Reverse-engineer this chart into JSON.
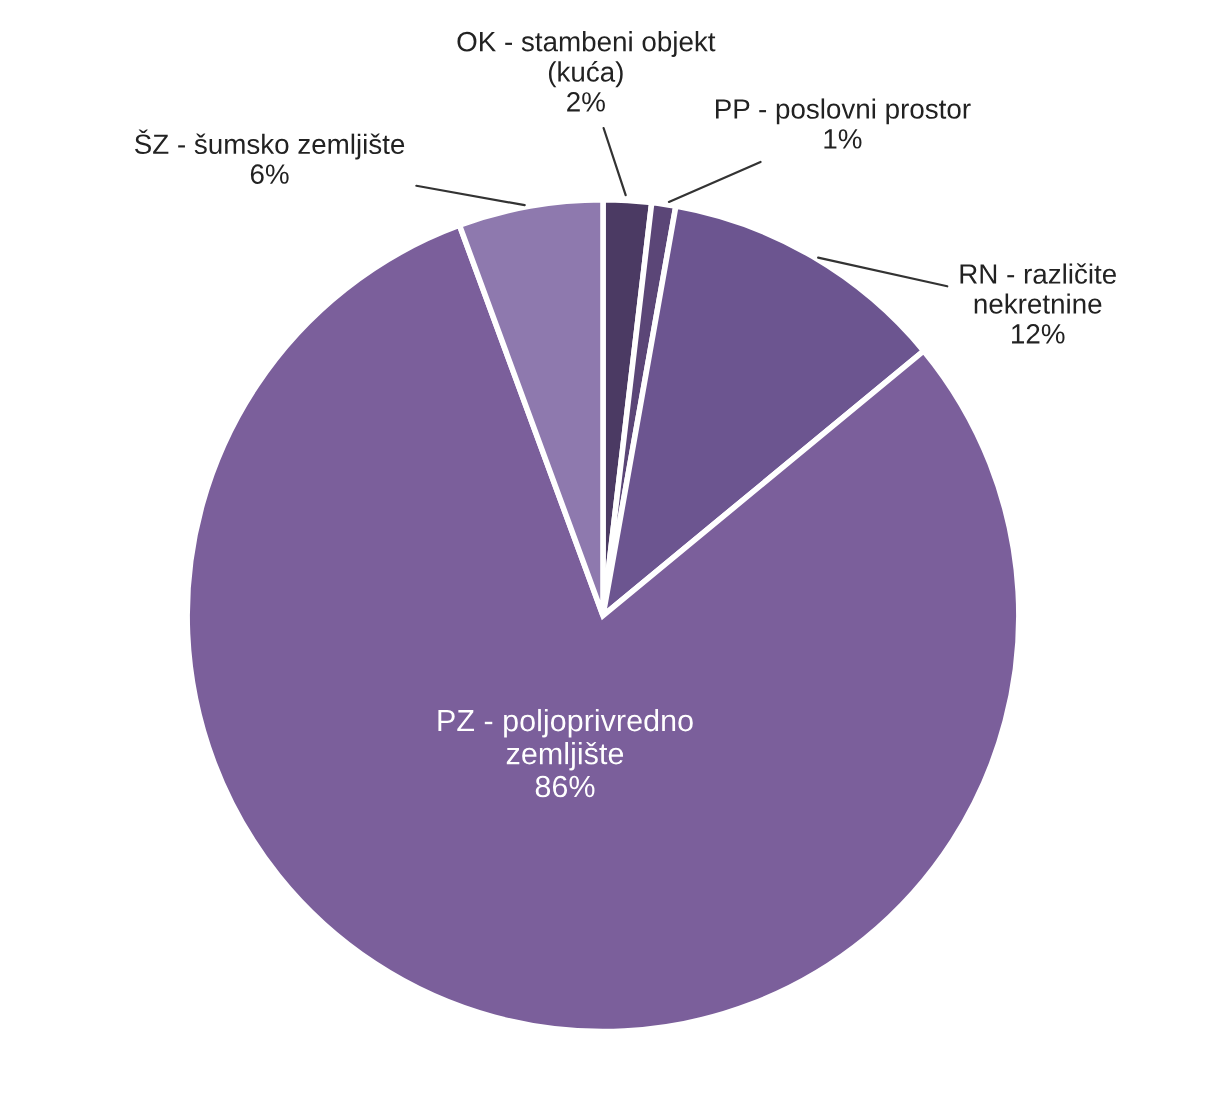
{
  "chart_data": {
    "type": "pie",
    "categories": [
      "OK - stambeni objekt\n(kuća)",
      "PP - poslovni prostor",
      "RN - različite\nnekretnine",
      "PZ - poljoprivredno\nzemljište",
      "ŠZ - šumsko zemljište"
    ],
    "values": [
      2,
      1,
      12,
      86,
      6
    ],
    "value_labels": [
      "2%",
      "1%",
      "12%",
      "86%",
      "6%"
    ],
    "colors": [
      "#4b3a63",
      "#5b4677",
      "#6c5590",
      "#7b5f9b",
      "#8e79ae"
    ]
  }
}
